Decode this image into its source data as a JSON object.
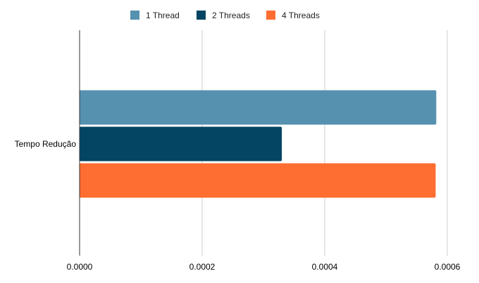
{
  "chart_data": {
    "type": "bar",
    "orientation": "horizontal",
    "categories": [
      "Tempo Redução"
    ],
    "series": [
      {
        "name": "1 Thread",
        "values": [
          0.000582
        ],
        "color": "#5791b0"
      },
      {
        "name": "2 Threads",
        "values": [
          0.00033
        ],
        "color": "#034563"
      },
      {
        "name": "4 Threads",
        "values": [
          0.000581
        ],
        "color": "#fe6d31"
      }
    ],
    "xlim": [
      0,
      0.0006
    ],
    "xticks": [
      "0.0000",
      "0.0002",
      "0.0004",
      "0.0006"
    ],
    "grid": true,
    "legend_position": "top-center"
  }
}
